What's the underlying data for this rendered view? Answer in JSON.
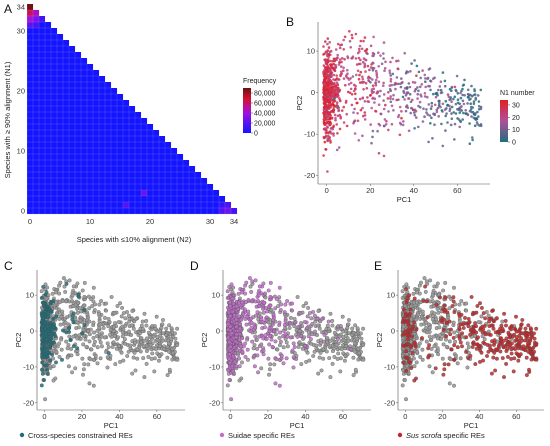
{
  "panels": {
    "A": "A",
    "B": "B",
    "C": "C",
    "D": "D",
    "E": "E"
  },
  "chart_data": [
    {
      "type": "heatmap",
      "panel": "A",
      "xlabel": "Species with ≤10% alignment (N2)",
      "ylabel": "Species with ≥ 90% alignment (N1)",
      "x_ticks": [
        0,
        10,
        20,
        30,
        34
      ],
      "y_ticks": [
        0,
        10,
        20,
        30,
        34
      ],
      "n": 34,
      "shape": "lower-triangle (N1 + N2 ≤ 34)",
      "legend": {
        "title": "Frequency",
        "ticks": [
          "80,000",
          "60,000",
          "40,000",
          "20,000",
          "0"
        ],
        "tick_values": [
          80000,
          60000,
          40000,
          20000,
          0
        ],
        "max": 90000
      },
      "colors": {
        "low": "#1414ff",
        "mid": "#a010e0",
        "high": "#d81030",
        "top": "#6a1010"
      },
      "hot_cells": [
        {
          "n1": 34,
          "n2": 0,
          "value": 88000
        },
        {
          "n1": 33,
          "n2": 0,
          "value": 60000
        },
        {
          "n1": 33,
          "n2": 1,
          "value": 45000
        },
        {
          "n1": 32,
          "n2": 0,
          "value": 42000
        },
        {
          "n1": 32,
          "n2": 1,
          "value": 30000
        },
        {
          "n1": 31,
          "n2": 0,
          "value": 22000
        },
        {
          "n1": 31,
          "n2": 1,
          "value": 16000
        },
        {
          "n1": 32,
          "n2": 2,
          "value": 14000
        },
        {
          "n1": 3,
          "n2": 19,
          "value": 25000
        },
        {
          "n1": 1,
          "n2": 16,
          "value": 18000
        },
        {
          "n1": 0,
          "n2": 33,
          "value": 26000
        },
        {
          "n1": 0,
          "n2": 32,
          "value": 18000
        },
        {
          "n1": 1,
          "n2": 33,
          "value": 16000
        },
        {
          "n1": 0,
          "n2": 34,
          "value": 14000
        },
        {
          "n1": 1,
          "n2": 32,
          "value": 10000
        }
      ]
    },
    {
      "type": "scatter",
      "panel": "B",
      "xlabel": "PC1",
      "ylabel": "PC2",
      "x_ticks": [
        0,
        20,
        40,
        60
      ],
      "y_ticks": [
        10,
        0,
        -10,
        -20
      ],
      "xlim": [
        -4,
        75
      ],
      "ylim": [
        -22,
        17
      ],
      "color_by": "N1",
      "legend": {
        "title": "N1 number",
        "ticks": [
          "30",
          "20",
          "10",
          "0"
        ],
        "tick_values": [
          30,
          20,
          10,
          0
        ],
        "range": [
          0,
          34
        ]
      },
      "colors": {
        "low": "#1f6e7a",
        "mid": "#b0509c",
        "high": "#e02020"
      }
    },
    {
      "type": "scatter",
      "panel": "C",
      "xlabel": "PC1",
      "ylabel": "PC2",
      "x_ticks": [
        0,
        20,
        40,
        60
      ],
      "y_ticks": [
        10,
        0,
        -10,
        -20
      ],
      "xlim": [
        -4,
        75
      ],
      "ylim": [
        -22,
        17
      ],
      "highlight_color": "#1f6e7a",
      "legend": [
        {
          "label": "Cross-species constrained REs",
          "color": "#1f6e7a"
        }
      ]
    },
    {
      "type": "scatter",
      "panel": "D",
      "xlabel": "PC1",
      "ylabel": "PC2",
      "x_ticks": [
        0,
        20,
        40,
        60
      ],
      "y_ticks": [
        10,
        0,
        -10,
        -20
      ],
      "xlim": [
        -4,
        75
      ],
      "ylim": [
        -22,
        17
      ],
      "highlight_color": "#c06ec8",
      "legend": [
        {
          "label": "Suidae specific REs",
          "color": "#c06ec8"
        }
      ]
    },
    {
      "type": "scatter",
      "panel": "E",
      "xlabel": "PC1",
      "ylabel": "PC2",
      "x_ticks": [
        0,
        20,
        40,
        60
      ],
      "y_ticks": [
        10,
        0,
        -10,
        -20
      ],
      "xlim": [
        -4,
        75
      ],
      "ylim": [
        -22,
        17
      ],
      "highlight_color": "#c0282a",
      "legend": [
        {
          "label_italic": "Sus scrofa",
          "label": " specific REs",
          "color": "#c0282a"
        }
      ]
    }
  ]
}
